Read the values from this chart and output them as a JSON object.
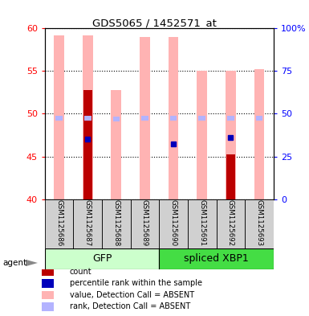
{
  "title": "GDS5065 / 1452571_at",
  "samples": [
    "GSM1125686",
    "GSM1125687",
    "GSM1125688",
    "GSM1125689",
    "GSM1125690",
    "GSM1125691",
    "GSM1125692",
    "GSM1125693"
  ],
  "ylim_left": [
    40,
    60
  ],
  "ylim_right": [
    0,
    100
  ],
  "yticks_left": [
    40,
    45,
    50,
    55,
    60
  ],
  "yticks_right": [
    0,
    25,
    50,
    75,
    100
  ],
  "ytick_labels_right": [
    "0",
    "25",
    "50",
    "75",
    "100%"
  ],
  "value_absent": [
    59.2,
    59.2,
    52.8,
    59.0,
    59.0,
    55.0,
    55.0,
    55.2
  ],
  "rank_absent_pct": [
    47.5,
    47.5,
    47.0,
    47.5,
    47.5,
    47.5,
    47.5,
    47.5
  ],
  "count_values": [
    null,
    52.8,
    null,
    null,
    null,
    null,
    45.2,
    null
  ],
  "percentile_values_left": [
    null,
    47.0,
    null,
    null,
    46.5,
    null,
    47.2,
    null
  ],
  "pink_color": "#ffb3b3",
  "lavender_color": "#b3b3ff",
  "red_color": "#bb0000",
  "blue_color": "#0000bb",
  "gfp_color": "#ccffcc",
  "xbp_color": "#44dd44",
  "sample_bg": "#d0d0d0",
  "legend_items": [
    {
      "label": "count",
      "color": "#bb0000"
    },
    {
      "label": "percentile rank within the sample",
      "color": "#0000bb"
    },
    {
      "label": "value, Detection Call = ABSENT",
      "color": "#ffb3b3"
    },
    {
      "label": "rank, Detection Call = ABSENT",
      "color": "#b3b3ff"
    }
  ]
}
